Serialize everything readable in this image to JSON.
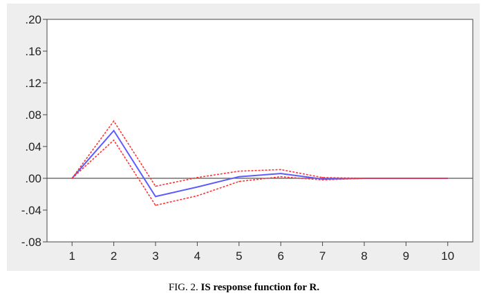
{
  "chart_data": {
    "type": "line",
    "x": [
      1,
      2,
      3,
      4,
      5,
      6,
      7,
      8,
      9,
      10
    ],
    "series": [
      {
        "values": [
          0.0,
          0.06,
          -0.023,
          -0.011,
          0.002,
          0.006,
          -0.001,
          0.0,
          0.0,
          0.0
        ],
        "color": "#5b5bff",
        "style": "solid"
      },
      {
        "values": [
          0.0,
          0.072,
          -0.01,
          0.001,
          0.009,
          0.011,
          0.001,
          0.0,
          0.0,
          0.0
        ],
        "color": "#ff3333",
        "style": "dotted"
      },
      {
        "values": [
          0.0,
          0.048,
          -0.034,
          -0.022,
          -0.004,
          0.002,
          -0.002,
          0.0,
          0.0,
          0.0
        ],
        "color": "#ff3333",
        "style": "dotted"
      }
    ],
    "ylim": [
      -0.08,
      0.2
    ],
    "xlim": [
      0.4,
      10.6
    ],
    "yticks": [
      -0.08,
      -0.04,
      0.0,
      0.04,
      0.08,
      0.12,
      0.16,
      0.2
    ],
    "ytick_labels": [
      "-.08",
      "-.04",
      ".00",
      ".04",
      ".08",
      ".12",
      ".16",
      ".20"
    ],
    "xtick_labels": [
      "1",
      "2",
      "3",
      "4",
      "5",
      "6",
      "7",
      "8",
      "9",
      "10"
    ],
    "zero_line": true,
    "grid": false
  },
  "caption": {
    "prefix": "FIG. 2. ",
    "bold": "IS response function for R."
  }
}
